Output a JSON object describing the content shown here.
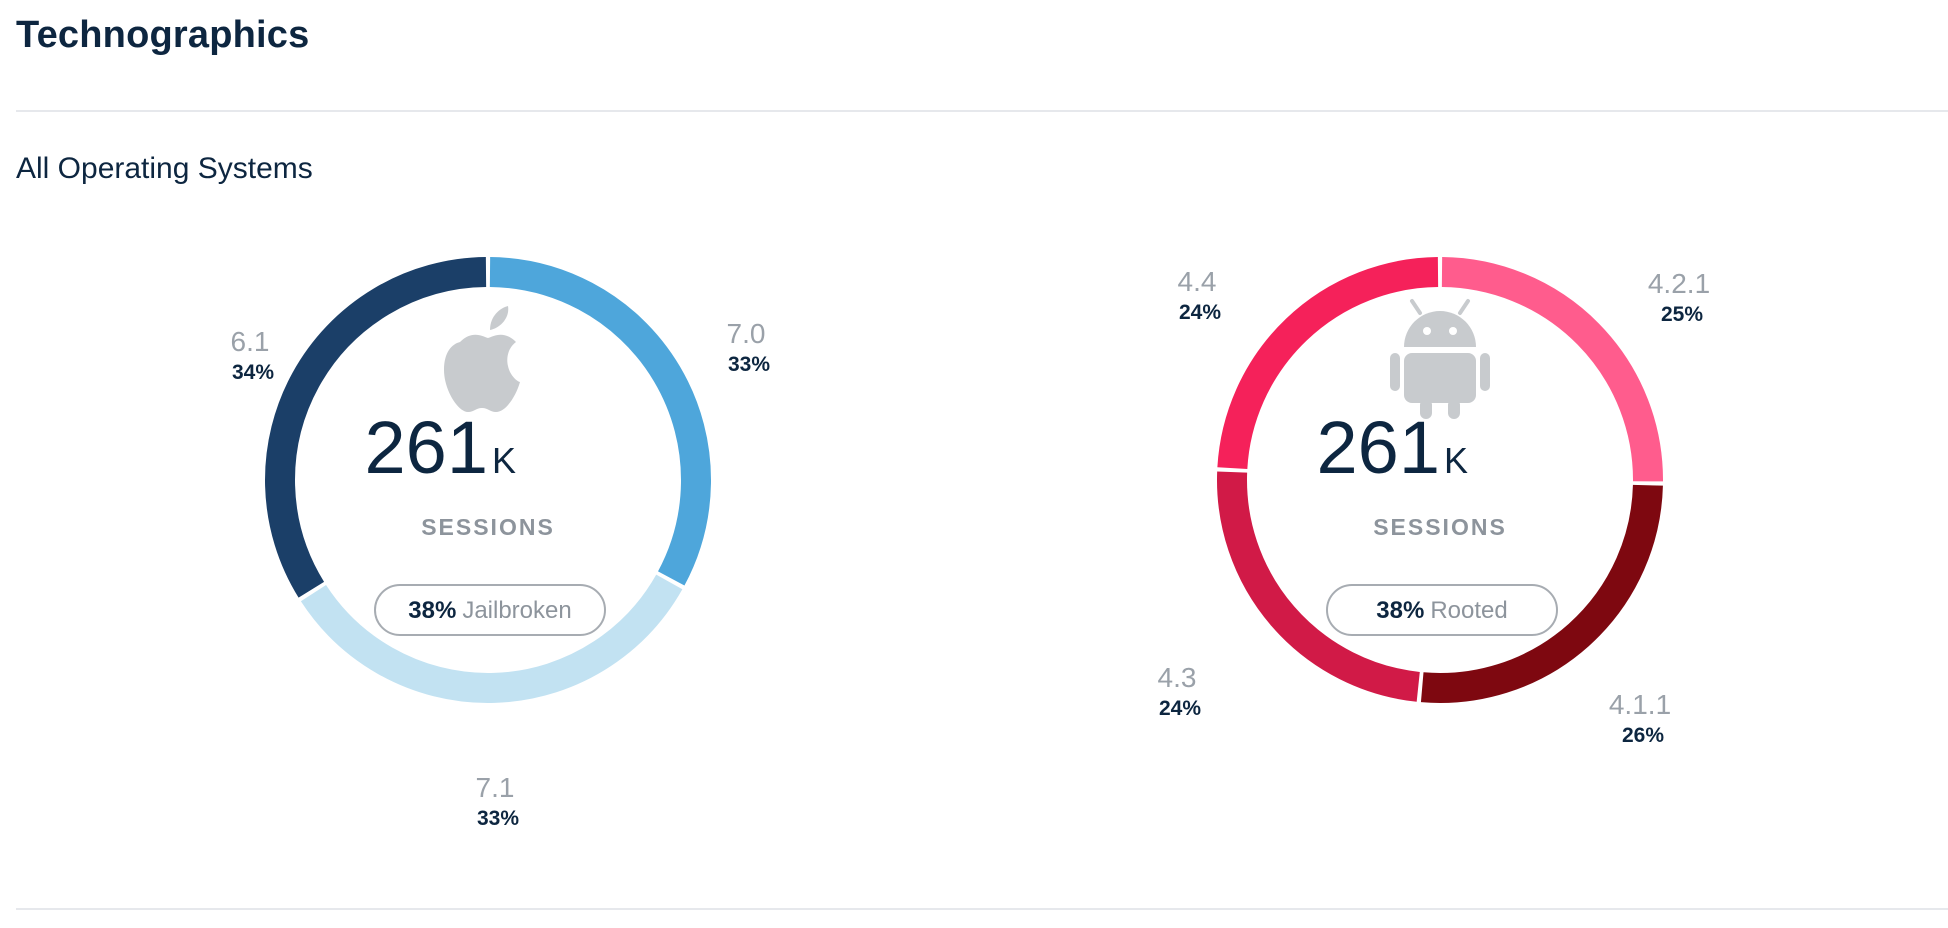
{
  "header": {
    "title": "Technographics"
  },
  "section": {
    "title": "All Operating Systems"
  },
  "chart_data": [
    {
      "type": "pie",
      "variant": "donut",
      "platform": "iOS",
      "icon": "apple-icon",
      "total_value": "261",
      "total_unit": "K",
      "total_label": "SESSIONS",
      "badge": {
        "pct": "38%",
        "text": "Jailbroken"
      },
      "slices": [
        {
          "label": "7.0",
          "value": 33,
          "pct_text": "33%",
          "color": "#4ea6db"
        },
        {
          "label": "7.1",
          "value": 33,
          "pct_text": "33%",
          "color": "#c2e2f2"
        },
        {
          "label": "6.1",
          "value": 34,
          "pct_text": "34%",
          "color": "#1b3f68"
        }
      ]
    },
    {
      "type": "pie",
      "variant": "donut",
      "platform": "Android",
      "icon": "android-icon",
      "total_value": "261",
      "total_unit": "K",
      "total_label": "SESSIONS",
      "badge": {
        "pct": "38%",
        "text": "Rooted"
      },
      "slices": [
        {
          "label": "4.2.1",
          "value": 25,
          "pct_text": "25%",
          "color": "#ff5c8d"
        },
        {
          "label": "4.1.1",
          "value": 26,
          "pct_text": "26%",
          "color": "#7e0810"
        },
        {
          "label": "4.3",
          "value": 24,
          "pct_text": "24%",
          "color": "#d11a47"
        },
        {
          "label": "4.4",
          "value": 24,
          "pct_text": "24%",
          "color": "#f5215a"
        }
      ]
    }
  ]
}
